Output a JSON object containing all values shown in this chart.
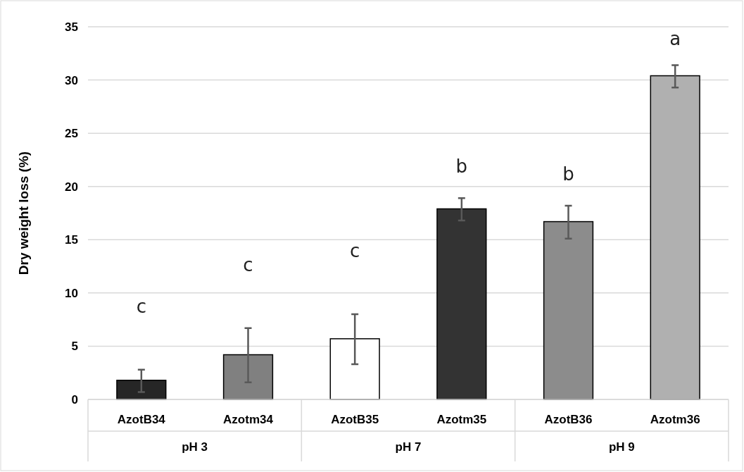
{
  "chart_data": {
    "type": "bar",
    "ylabel": "Dry weight loss (%)",
    "categories": [
      "AzotB34",
      "Azotm34",
      "AzotB35",
      "Azotm35",
      "AzotB36",
      "Azotm36"
    ],
    "values": [
      1.8,
      4.2,
      5.7,
      17.9,
      16.7,
      30.4
    ],
    "colors": [
      "#262626",
      "#808080",
      "#ffffff",
      "#333333",
      "#8c8c8c",
      "#b0b0b0"
    ],
    "errors": [
      [
        0.7,
        2.8
      ],
      [
        1.6,
        6.7
      ],
      [
        3.3,
        8.0
      ],
      [
        16.8,
        18.9
      ],
      [
        15.1,
        18.2
      ],
      [
        29.3,
        31.4
      ]
    ],
    "ylim": [
      0,
      35
    ],
    "yticks": [
      0,
      5,
      10,
      15,
      20,
      25,
      30,
      35
    ],
    "grid": "y",
    "legend": false,
    "annotations": [
      "c",
      "c",
      "c",
      "b",
      "b",
      "a",
      "pH 3",
      "pH 7",
      "pH 9"
    ]
  }
}
